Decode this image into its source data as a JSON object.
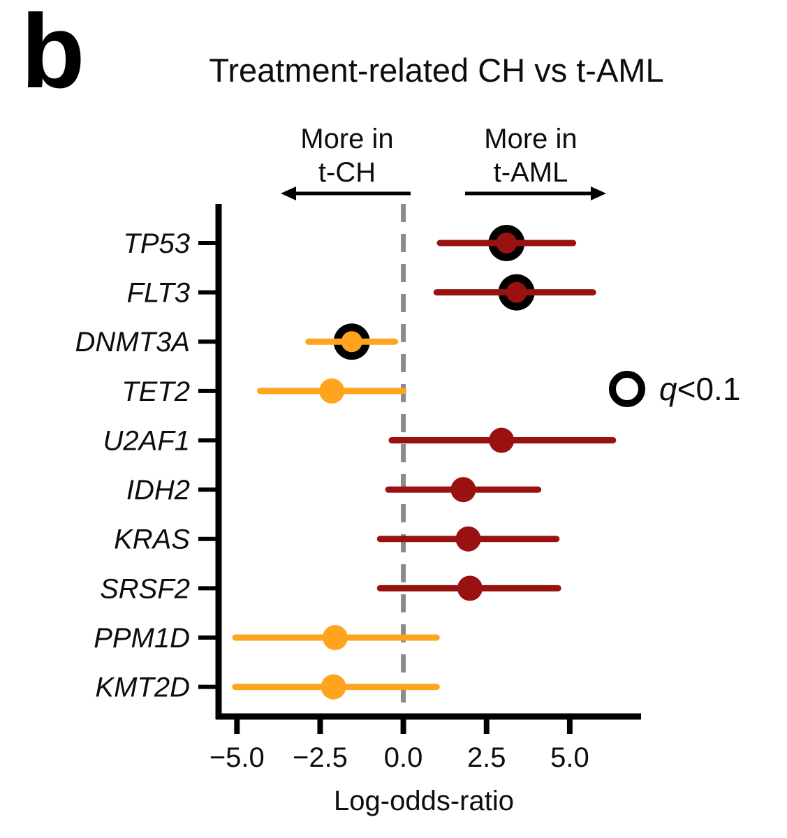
{
  "panel_label": "b",
  "title": "Treatment-related CH vs t-AML",
  "annotations": {
    "left": {
      "line1": "More in",
      "line2": "t-CH"
    },
    "right": {
      "line1": "More in",
      "line2": "t-AML"
    }
  },
  "legend": {
    "symbol": "open-circle",
    "label_italic": "q",
    "label_rest": "<0.1"
  },
  "xlabel": "Log-odds-ratio",
  "chart_data": {
    "type": "scatter",
    "subtype": "forest-plot",
    "title": "Treatment-related CH vs t-AML",
    "xlabel": "Log-odds-ratio",
    "ylabel": "",
    "xlim": [
      -6.3,
      7.2
    ],
    "xticks": [
      -5.0,
      -2.5,
      0.0,
      2.5,
      5.0
    ],
    "xtick_labels": [
      "−5.0",
      "−2.5",
      "0.0",
      "2.5",
      "5.0"
    ],
    "zero_line": 0,
    "grid": false,
    "legend_position": "right-middle",
    "colors": {
      "t_aml": "#991111",
      "t_ch": "#FFA41E",
      "significant_ring": "#000000",
      "zero_line": "#8A8A8A",
      "axis": "#000000"
    },
    "series": [
      {
        "gene": "TP53",
        "estimate": 3.1,
        "ci_low": 1.1,
        "ci_high": 5.1,
        "direction": "t-AML",
        "significant": true
      },
      {
        "gene": "FLT3",
        "estimate": 3.4,
        "ci_low": 1.0,
        "ci_high": 5.7,
        "direction": "t-AML",
        "significant": true
      },
      {
        "gene": "DNMT3A",
        "estimate": -1.55,
        "ci_low": -2.85,
        "ci_high": -0.25,
        "direction": "t-CH",
        "significant": true
      },
      {
        "gene": "TET2",
        "estimate": -2.15,
        "ci_low": -4.3,
        "ci_high": 0.0,
        "direction": "t-CH",
        "significant": false
      },
      {
        "gene": "U2AF1",
        "estimate": 2.95,
        "ci_low": -0.35,
        "ci_high": 6.3,
        "direction": "t-AML",
        "significant": false
      },
      {
        "gene": "IDH2",
        "estimate": 1.8,
        "ci_low": -0.45,
        "ci_high": 4.05,
        "direction": "t-AML",
        "significant": false
      },
      {
        "gene": "KRAS",
        "estimate": 1.95,
        "ci_low": -0.7,
        "ci_high": 4.6,
        "direction": "t-AML",
        "significant": false
      },
      {
        "gene": "SRSF2",
        "estimate": 2.0,
        "ci_low": -0.7,
        "ci_high": 4.65,
        "direction": "t-AML",
        "significant": false
      },
      {
        "gene": "PPM1D",
        "estimate": -2.05,
        "ci_low": -5.05,
        "ci_high": 1.0,
        "direction": "t-CH",
        "significant": false
      },
      {
        "gene": "KMT2D",
        "estimate": -2.1,
        "ci_low": -5.05,
        "ci_high": 1.0,
        "direction": "t-CH",
        "significant": false
      }
    ]
  }
}
